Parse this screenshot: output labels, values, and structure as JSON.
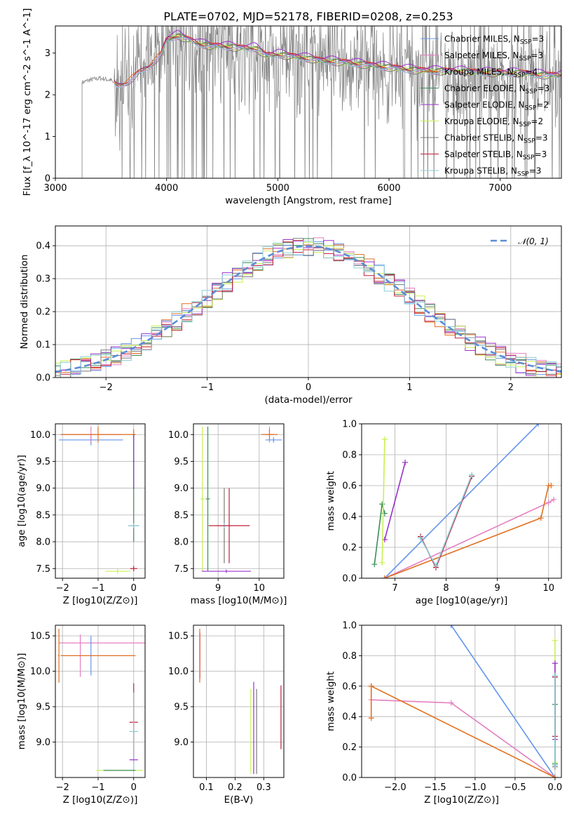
{
  "figure_title": "PLATE=0702, MJD=52178, FIBERID=0208, z=0.253",
  "colors": {
    "Chabrier MILES": "#6495ed",
    "Salpeter MILES": "#e47fc0",
    "Kroupa MILES": "#e07020",
    "Chabrier ELODIE": "#3a8f5a",
    "Salpeter ELODIE": "#9932cc",
    "Kroupa ELODIE": "#c8f050",
    "Chabrier STELIB": "#7a7a7a",
    "Salpeter STELIB": "#c41e3a",
    "Kroupa STELIB": "#8ecdd6",
    "data": "#808080",
    "normal": "#5b8dd6"
  },
  "chart_data": [
    {
      "id": "spectrum",
      "type": "line",
      "title": "PLATE=0702, MJD=52178, FIBERID=0208, z=0.253",
      "xlabel": "wavelength [Angstrom, rest frame]",
      "ylabel": "Flux [f_λ 10^-17 erg cm^-2 s^-1 A^-1]",
      "xlim": [
        3000,
        7550
      ],
      "ylim": [
        0,
        3.65
      ],
      "xticks": [
        "3000",
        "4000",
        "5000",
        "6000",
        "7000"
      ],
      "yticks": [
        "0",
        "1",
        "2",
        "3"
      ],
      "legend_position": "top-right",
      "legend": [
        "Chabrier MILES, N_SSP=3",
        "Salpeter MILES, N_SSP=3",
        "Kroupa MILES, N_SSP=4",
        "Chabrier ELODIE, N_SSP=3",
        "Salpeter ELODIE, N_SSP=2",
        "Kroupa ELODIE, N_SSP=2",
        "Chabrier STELIB, N_SSP=3",
        "Salpeter STELIB, N_SSP=3",
        "Kroupa STELIB, N_SSP=3"
      ],
      "model_continuum": {
        "x": [
          3250,
          3300,
          3400,
          3500,
          3550,
          3650,
          3750,
          3850,
          3950,
          4000,
          4100,
          4200,
          4300,
          4400,
          4500,
          4600,
          4700,
          4800,
          4900,
          5000,
          5200,
          5400,
          5600,
          5800,
          6000,
          6200,
          6400,
          6600,
          6800,
          7000,
          7200,
          7400
        ],
        "y": [
          2.3,
          2.35,
          2.4,
          2.35,
          2.2,
          2.3,
          2.5,
          2.7,
          2.95,
          3.3,
          3.4,
          3.3,
          3.2,
          3.15,
          3.15,
          3.12,
          3.1,
          3.1,
          2.92,
          2.95,
          2.88,
          2.8,
          2.76,
          2.7,
          2.64,
          2.58,
          2.55,
          2.55,
          2.52,
          2.5,
          2.5,
          2.45
        ]
      }
    },
    {
      "id": "residuals",
      "type": "line",
      "xlabel": "(data-model)/error",
      "ylabel": "Normed distribution",
      "xlim": [
        -2.5,
        2.5
      ],
      "ylim": [
        0,
        0.46
      ],
      "xticks": [
        "−2",
        "−1",
        "0",
        "1",
        "2"
      ],
      "yticks": [
        "0.0",
        "0.1",
        "0.2",
        "0.3",
        "0.4"
      ],
      "legend_position": "top-right",
      "legend": [
        "𝒩(0, 1)"
      ],
      "curve": "normal pdf, mean 0, sigma 1",
      "histogram_series": [
        "Chabrier MILES",
        "Salpeter MILES",
        "Kroupa MILES",
        "Chabrier ELODIE",
        "Salpeter ELODIE",
        "Kroupa ELODIE",
        "Chabrier STELIB",
        "Salpeter STELIB",
        "Kroupa STELIB"
      ]
    },
    {
      "id": "age_vs_Z",
      "type": "scatter",
      "xlabel": "Z [log10(Z/Z⊙)]",
      "ylabel": "age [log10(age/yr)]",
      "xlim": [
        -2.2,
        0.32
      ],
      "ylim": [
        7.32,
        10.2
      ],
      "xticks": [
        "−2",
        "−1",
        "0"
      ],
      "yticks": [
        "7.5",
        "8.0",
        "8.5",
        "9.0",
        "9.5",
        "10.0"
      ],
      "points": [
        {
          "series": "Chabrier MILES",
          "x": -1.2,
          "y": 9.9,
          "xerr": 0.9,
          "yerr": 0.1
        },
        {
          "series": "Salpeter MILES",
          "x": -1.2,
          "y": 10.0,
          "xerr": 0.85,
          "yerr": 0.15
        },
        {
          "series": "Kroupa MILES",
          "x": -1.0,
          "y": 10.0,
          "xerr": 1.05,
          "yerr": 0.15
        },
        {
          "series": "Kroupa MILES",
          "x": 0.0,
          "y": 10.0,
          "xerr": 0.05,
          "yerr": 0.1
        },
        {
          "series": "Chabrier ELODIE",
          "x": 0.0,
          "y": 9.0,
          "xerr": 0.02,
          "yerr": 1.0
        },
        {
          "series": "Salpeter ELODIE",
          "x": 0.0,
          "y": 9.5,
          "xerr": 0.02,
          "yerr": 0.5
        },
        {
          "series": "Kroupa ELODIE",
          "x": -0.45,
          "y": 7.45,
          "xerr": 0.35,
          "yerr": 0.05
        },
        {
          "series": "Chabrier STELIB",
          "x": 0.0,
          "y": 8.3,
          "xerr": 0.15,
          "yerr": 0.05
        },
        {
          "series": "Kroupa STELIB",
          "x": 0.0,
          "y": 8.3,
          "xerr": 0.15,
          "yerr": 0.05
        },
        {
          "series": "Salpeter STELIB",
          "x": 0.0,
          "y": 7.5,
          "xerr": 0.1,
          "yerr": 0.05
        }
      ]
    },
    {
      "id": "age_vs_mass",
      "type": "scatter",
      "xlabel": "mass [log10(M/M⊙)]",
      "ylabel": "",
      "xlim": [
        8.4,
        10.6
      ],
      "ylim": [
        7.32,
        10.2
      ],
      "xticks": [
        "9",
        "10"
      ],
      "yticks": [
        "7.5",
        "8.0",
        "8.5",
        "9.0",
        "9.5",
        "10.0"
      ],
      "points": [
        {
          "series": "Kroupa ELODIE",
          "x": 8.62,
          "y": 8.8,
          "xerr": 0.05,
          "yerr": 1.35
        },
        {
          "series": "Salpeter ELODIE",
          "x": 9.2,
          "y": 7.45,
          "xerr": 0.6,
          "yerr": 0.03
        },
        {
          "series": "Chabrier ELODIE",
          "x": 8.75,
          "y": 8.8,
          "xerr": 0.05,
          "yerr": 1.35
        },
        {
          "series": "Chabrier STELIB",
          "x": 9.15,
          "y": 8.3,
          "xerr": 0.05,
          "yerr": 0.7
        },
        {
          "series": "Kroupa STELIB",
          "x": 9.15,
          "y": 8.3,
          "xerr": 0.2,
          "yerr": 0.05
        },
        {
          "series": "Salpeter STELIB",
          "x": 9.27,
          "y": 8.3,
          "xerr": 0.5,
          "yerr": 0.7
        },
        {
          "series": "Salpeter MILES",
          "x": 10.25,
          "y": 10.0,
          "xerr": 0.12,
          "yerr": 0.15
        },
        {
          "series": "Kroupa MILES",
          "x": 10.25,
          "y": 10.0,
          "xerr": 0.2,
          "yerr": 0.1
        },
        {
          "series": "Chabrier MILES",
          "x": 10.35,
          "y": 9.9,
          "xerr": 0.2,
          "yerr": 0.05
        }
      ]
    },
    {
      "id": "weight_vs_age",
      "type": "line",
      "xlabel": "age [log10(age/yr)]",
      "ylabel": "mass weight",
      "xlim": [
        6.35,
        10.25
      ],
      "ylim": [
        0,
        1
      ],
      "xticks": [
        "7",
        "8",
        "9",
        "10"
      ],
      "yticks": [
        "0.0",
        "0.2",
        "0.4",
        "0.6",
        "0.8",
        "1.0"
      ],
      "series": [
        {
          "key": "Chabrier MILES",
          "x": [
            6.8,
            9.8
          ],
          "y": [
            0.0,
            1.0
          ]
        },
        {
          "key": "Salpeter MILES",
          "x": [
            6.8,
            10.0,
            10.1
          ],
          "y": [
            0.0,
            0.49,
            0.51
          ]
        },
        {
          "key": "Kroupa MILES",
          "x": [
            6.8,
            9.85,
            10.0,
            10.05
          ],
          "y": [
            0.0,
            0.39,
            0.6,
            0.6
          ]
        },
        {
          "key": "Chabrier ELODIE",
          "x": [
            6.6,
            6.75,
            6.8
          ],
          "y": [
            0.09,
            0.48,
            0.42
          ]
        },
        {
          "key": "Salpeter ELODIE",
          "x": [
            6.8,
            7.2
          ],
          "y": [
            0.25,
            0.75
          ]
        },
        {
          "key": "Kroupa ELODIE",
          "x": [
            6.75,
            6.8
          ],
          "y": [
            0.1,
            0.9
          ]
        },
        {
          "key": "Chabrier STELIB",
          "x": [
            7.5,
            7.8,
            8.5
          ],
          "y": [
            0.27,
            0.07,
            0.66
          ]
        },
        {
          "key": "Salpeter STELIB",
          "x": [
            7.5,
            7.8,
            8.5
          ],
          "y": [
            0.27,
            0.07,
            0.66
          ]
        },
        {
          "key": "Kroupa STELIB",
          "x": [
            7.5,
            7.8,
            8.5
          ],
          "y": [
            0.26,
            0.08,
            0.67
          ]
        }
      ]
    },
    {
      "id": "mass_vs_Z",
      "type": "scatter",
      "xlabel": "Z [log10(Z/Z⊙)]",
      "ylabel": "mass [log10(M/M⊙)]",
      "xlim": [
        -2.2,
        0.32
      ],
      "ylim": [
        8.5,
        10.65
      ],
      "xticks": [
        "−2",
        "−1",
        "0"
      ],
      "yticks": [
        "9.0",
        "9.5",
        "10.0",
        "10.5"
      ],
      "points": [
        {
          "series": "Salpeter MILES",
          "x": -0.8,
          "y": 10.4,
          "xerr": 1.3,
          "yerr": 0.0
        },
        {
          "series": "Salpeter MILES",
          "x": -1.5,
          "y": 10.22,
          "xerr": 0.02,
          "yerr": 0.3
        },
        {
          "series": "Chabrier MILES",
          "x": -1.2,
          "y": 10.22,
          "xerr": 0.02,
          "yerr": 0.28
        },
        {
          "series": "Kroupa MILES",
          "x": -1.0,
          "y": 10.22,
          "xerr": 1.05,
          "yerr": 0.0
        },
        {
          "series": "Kroupa MILES",
          "x": -2.1,
          "y": 10.22,
          "xerr": 0.02,
          "yerr": 0.38
        },
        {
          "series": "Salpeter STELIB",
          "x": 0.0,
          "y": 9.28,
          "xerr": 0.12,
          "yerr": 0.55
        },
        {
          "series": "Kroupa STELIB",
          "x": 0.0,
          "y": 9.15,
          "xerr": 0.12,
          "yerr": 0.55
        },
        {
          "series": "Salpeter ELODIE",
          "x": 0.0,
          "y": 8.75,
          "xerr": 0.12,
          "yerr": 0.0
        },
        {
          "series": "Kroupa ELODIE",
          "x": -0.4,
          "y": 8.6,
          "xerr": 0.65,
          "yerr": 0.0
        },
        {
          "series": "Chabrier ELODIE",
          "x": -0.4,
          "y": 8.6,
          "xerr": 0.45,
          "yerr": 0.0
        }
      ]
    },
    {
      "id": "mass_vs_EBV",
      "type": "scatter",
      "xlabel": "E(B-V)",
      "ylabel": "",
      "xlim": [
        0.055,
        0.37
      ],
      "ylim": [
        8.5,
        10.65
      ],
      "xticks": [
        "0.1",
        "0.2",
        "0.3"
      ],
      "yticks": [
        "9.0",
        "9.5",
        "10.0",
        "10.5"
      ],
      "points": [
        {
          "series": "Salpeter MILES",
          "x": 0.078,
          "y": 10.22,
          "xerr": 0.0,
          "yerr": 0.32
        },
        {
          "series": "Kroupa MILES",
          "x": 0.077,
          "y": 10.22,
          "xerr": 0.0,
          "yerr": 0.38
        },
        {
          "series": "Kroupa ELODIE",
          "x": 0.255,
          "y": 9.15,
          "xerr": 0.0,
          "yerr": 0.6
        },
        {
          "series": "Salpeter ELODIE",
          "x": 0.265,
          "y": 9.2,
          "xerr": 0.0,
          "yerr": 0.65
        },
        {
          "series": "Chabrier STELIB",
          "x": 0.275,
          "y": 9.15,
          "xerr": 0.0,
          "yerr": 0.6
        },
        {
          "series": "Salpeter STELIB",
          "x": 0.36,
          "y": 9.35,
          "xerr": 0.0,
          "yerr": 0.45
        },
        {
          "series": "Kroupa STELIB",
          "x": 0.362,
          "y": 9.3,
          "xerr": 0.0,
          "yerr": 0.4
        }
      ]
    },
    {
      "id": "weight_vs_Z",
      "type": "line",
      "xlabel": "Z [log10(Z/Z⊙)]",
      "ylabel": "mass weight",
      "xlim": [
        -2.42,
        0.08
      ],
      "ylim": [
        0,
        1
      ],
      "xticks": [
        "−2.0",
        "−1.5",
        "−1.0",
        "−0.5",
        "0.0"
      ],
      "yticks": [
        "0.0",
        "0.2",
        "0.4",
        "0.6",
        "0.8",
        "1.0"
      ],
      "series": [
        {
          "key": "Chabrier MILES",
          "x": [
            -1.3,
            0.0
          ],
          "y": [
            1.0,
            0.0
          ]
        },
        {
          "key": "Salpeter MILES",
          "x": [
            -2.3,
            -1.3,
            0.0
          ],
          "y": [
            0.51,
            0.49,
            0.0
          ]
        },
        {
          "key": "Kroupa MILES",
          "x": [
            -2.3,
            -2.3,
            -2.3,
            0.0
          ],
          "y": [
            0.39,
            0.6,
            0.6,
            0.0
          ]
        },
        {
          "key": "Kroupa ELODIE",
          "x": [
            0.0,
            0.0
          ],
          "y": [
            0.1,
            0.9
          ]
        },
        {
          "key": "Salpeter ELODIE",
          "x": [
            0.0,
            0.0
          ],
          "y": [
            0.25,
            0.75
          ]
        },
        {
          "key": "Chabrier ELODIE",
          "x": [
            0.0,
            0.0
          ],
          "y": [
            0.09,
            0.48
          ]
        },
        {
          "key": "Chabrier STELIB",
          "x": [
            0.0,
            0.0
          ],
          "y": [
            0.07,
            0.66
          ]
        },
        {
          "key": "Salpeter STELIB",
          "x": [
            0.0,
            0.0
          ],
          "y": [
            0.27,
            0.66
          ]
        },
        {
          "key": "Kroupa STELIB",
          "x": [
            0.0,
            0.0
          ],
          "y": [
            0.08,
            0.67
          ]
        }
      ]
    }
  ]
}
